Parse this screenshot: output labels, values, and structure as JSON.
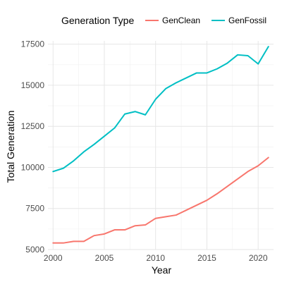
{
  "chart_data": {
    "type": "line",
    "xlabel": "Year",
    "ylabel": "Total Generation",
    "xlim": [
      1999.5,
      2021.5
    ],
    "ylim": [
      5000,
      17700
    ],
    "x_ticks": [
      2000,
      2005,
      2010,
      2015,
      2020
    ],
    "x_tick_labels": [
      "2000",
      "2005",
      "2010",
      "2015",
      "2020"
    ],
    "y_ticks": [
      5000,
      7500,
      10000,
      12500,
      15000,
      17500
    ],
    "y_tick_labels": [
      "5000",
      "7500",
      "10000",
      "12500",
      "15000",
      "17500"
    ],
    "grid": true,
    "legend": {
      "title": "Generation Type",
      "position": "top"
    },
    "x": [
      2000,
      2001,
      2002,
      2003,
      2004,
      2005,
      2006,
      2007,
      2008,
      2009,
      2010,
      2011,
      2012,
      2013,
      2014,
      2015,
      2016,
      2017,
      2018,
      2019,
      2020,
      2021
    ],
    "series": [
      {
        "name": "GenClean",
        "color": "#F8766D",
        "values": [
          5400,
          5400,
          5500,
          5500,
          5850,
          5950,
          6200,
          6200,
          6450,
          6500,
          6900,
          7000,
          7100,
          7400,
          7700,
          8000,
          8400,
          8850,
          9300,
          9750,
          10100,
          10600
        ]
      },
      {
        "name": "GenFossil",
        "color": "#00BFC4",
        "values": [
          9750,
          9950,
          10400,
          10950,
          11400,
          11900,
          12400,
          13250,
          13400,
          13200,
          14150,
          14800,
          15150,
          15450,
          15750,
          15750,
          16000,
          16350,
          16850,
          16800,
          16300,
          17350
        ]
      }
    ]
  }
}
